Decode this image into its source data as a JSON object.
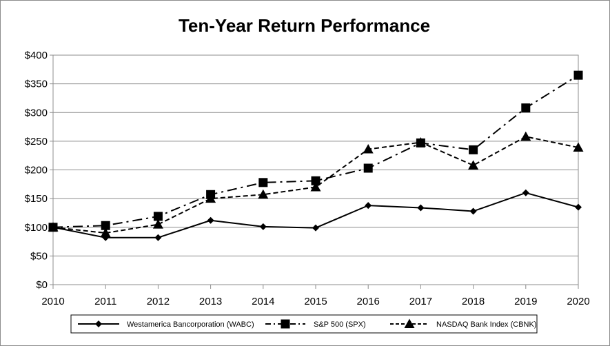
{
  "chart_data": {
    "type": "line",
    "title": "Ten-Year Return Performance",
    "xlabel": "",
    "ylabel": "",
    "x": [
      "2010",
      "2011",
      "2012",
      "2013",
      "2014",
      "2015",
      "2016",
      "2017",
      "2018",
      "2019",
      "2020"
    ],
    "y_ticks": [
      "$0",
      "$50",
      "$100",
      "$150",
      "$200",
      "$250",
      "$300",
      "$350",
      "$400"
    ],
    "ylim": [
      0,
      400
    ],
    "grid": "horizontal",
    "legend_position": "bottom",
    "series": [
      {
        "name": "Westamerica Bancorporation (WABC)",
        "marker": "diamond",
        "line": "solid",
        "values": [
          100,
          82,
          82,
          112,
          101,
          99,
          138,
          134,
          128,
          160,
          135
        ]
      },
      {
        "name": "S&P 500 (SPX)",
        "marker": "square",
        "line": "dashdot",
        "values": [
          100,
          103,
          119,
          157,
          178,
          181,
          203,
          247,
          235,
          308,
          365
        ]
      },
      {
        "name": "NASDAQ Bank Index (CBNK)",
        "marker": "triangle",
        "line": "dashed",
        "values": [
          100,
          90,
          105,
          150,
          157,
          170,
          236,
          248,
          208,
          258,
          239
        ]
      }
    ]
  }
}
